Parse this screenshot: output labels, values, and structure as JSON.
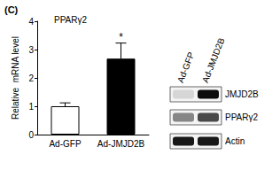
{
  "panel_label": "(C)",
  "chart_data": {
    "type": "bar",
    "title": "PPARγ2",
    "y_label": "Relative  mRNA level",
    "categories": [
      "Ad-GFP",
      "Ad-JMJD2B"
    ],
    "values": [
      1.0,
      2.68
    ],
    "errors": [
      0.12,
      0.55
    ],
    "colors": [
      "#ffffff",
      "#000000"
    ],
    "ylim": [
      0,
      4
    ],
    "yticks": [
      0,
      1,
      2,
      3,
      4
    ],
    "grid": false,
    "annotations": [
      {
        "category": "Ad-JMJD2B",
        "text": "*"
      }
    ]
  },
  "blot": {
    "lanes": [
      "Ad-GFP",
      "Ad-JMJD2B"
    ],
    "rows": [
      "JMJD2B",
      "PPARγ2",
      "Actin"
    ]
  }
}
